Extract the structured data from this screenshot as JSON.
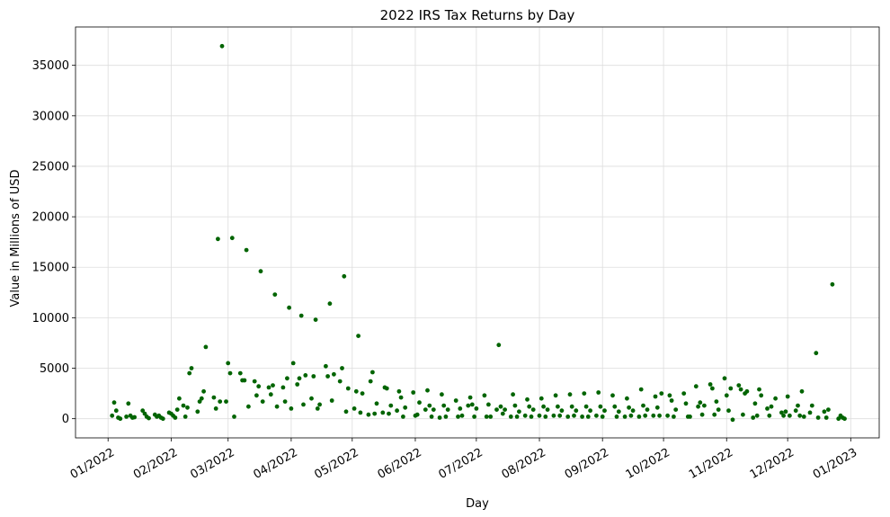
{
  "chart_data": {
    "type": "scatter",
    "title": "2022 IRS Tax Returns by Day",
    "xlabel": "Day",
    "ylabel": "Value in Millions of USD",
    "xlim": [
      "2021-12-16",
      "2023-01-15"
    ],
    "ylim": [
      -1900,
      38800
    ],
    "grid": true,
    "marker_color": "#006400",
    "x_ticks": [
      {
        "date": "2022-01-01",
        "label": "01/2022"
      },
      {
        "date": "2022-02-01",
        "label": "02/2022"
      },
      {
        "date": "2022-03-01",
        "label": "03/2022"
      },
      {
        "date": "2022-04-01",
        "label": "04/2022"
      },
      {
        "date": "2022-05-01",
        "label": "05/2022"
      },
      {
        "date": "2022-06-01",
        "label": "06/2022"
      },
      {
        "date": "2022-07-01",
        "label": "07/2022"
      },
      {
        "date": "2022-08-01",
        "label": "08/2022"
      },
      {
        "date": "2022-09-01",
        "label": "09/2022"
      },
      {
        "date": "2022-10-01",
        "label": "10/2022"
      },
      {
        "date": "2022-11-01",
        "label": "11/2022"
      },
      {
        "date": "2022-12-01",
        "label": "12/2022"
      },
      {
        "date": "2023-01-01",
        "label": "01/2023"
      }
    ],
    "y_ticks": [
      {
        "value": 0,
        "label": "0"
      },
      {
        "value": 5000,
        "label": "5000"
      },
      {
        "value": 10000,
        "label": "10000"
      },
      {
        "value": 15000,
        "label": "15000"
      },
      {
        "value": 20000,
        "label": "20000"
      },
      {
        "value": 25000,
        "label": "25000"
      },
      {
        "value": 30000,
        "label": "30000"
      },
      {
        "value": 35000,
        "label": "35000"
      }
    ],
    "points": [
      [
        "2022-01-03",
        300
      ],
      [
        "2022-01-04",
        1600
      ],
      [
        "2022-01-05",
        800
      ],
      [
        "2022-01-06",
        100
      ],
      [
        "2022-01-07",
        0
      ],
      [
        "2022-01-10",
        200
      ],
      [
        "2022-01-11",
        1500
      ],
      [
        "2022-01-12",
        300
      ],
      [
        "2022-01-13",
        100
      ],
      [
        "2022-01-14",
        150
      ],
      [
        "2022-01-18",
        800
      ],
      [
        "2022-01-19",
        500
      ],
      [
        "2022-01-20",
        200
      ],
      [
        "2022-01-21",
        50
      ],
      [
        "2022-01-24",
        400
      ],
      [
        "2022-01-25",
        200
      ],
      [
        "2022-01-26",
        300
      ],
      [
        "2022-01-27",
        100
      ],
      [
        "2022-01-28",
        0
      ],
      [
        "2022-01-31",
        600
      ],
      [
        "2022-02-01",
        500
      ],
      [
        "2022-02-02",
        300
      ],
      [
        "2022-02-03",
        100
      ],
      [
        "2022-02-04",
        900
      ],
      [
        "2022-02-05",
        2000
      ],
      [
        "2022-02-07",
        1300
      ],
      [
        "2022-02-08",
        200
      ],
      [
        "2022-02-09",
        1100
      ],
      [
        "2022-02-10",
        4500
      ],
      [
        "2022-02-11",
        5000
      ],
      [
        "2022-02-14",
        700
      ],
      [
        "2022-02-15",
        1700
      ],
      [
        "2022-02-16",
        2000
      ],
      [
        "2022-02-17",
        2700
      ],
      [
        "2022-02-18",
        7100
      ],
      [
        "2022-02-22",
        2100
      ],
      [
        "2022-02-23",
        1000
      ],
      [
        "2022-02-24",
        17800
      ],
      [
        "2022-02-25",
        1700
      ],
      [
        "2022-02-26",
        36900
      ],
      [
        "2022-02-28",
        1700
      ],
      [
        "2022-03-01",
        5500
      ],
      [
        "2022-03-02",
        4500
      ],
      [
        "2022-03-03",
        17900
      ],
      [
        "2022-03-04",
        200
      ],
      [
        "2022-03-07",
        4500
      ],
      [
        "2022-03-08",
        3800
      ],
      [
        "2022-03-09",
        3800
      ],
      [
        "2022-03-10",
        16700
      ],
      [
        "2022-03-11",
        1200
      ],
      [
        "2022-03-14",
        3700
      ],
      [
        "2022-03-15",
        2300
      ],
      [
        "2022-03-16",
        3200
      ],
      [
        "2022-03-17",
        14600
      ],
      [
        "2022-03-18",
        1700
      ],
      [
        "2022-03-21",
        3100
      ],
      [
        "2022-03-22",
        2400
      ],
      [
        "2022-03-23",
        3300
      ],
      [
        "2022-03-24",
        12300
      ],
      [
        "2022-03-25",
        1200
      ],
      [
        "2022-03-28",
        3100
      ],
      [
        "2022-03-29",
        1700
      ],
      [
        "2022-03-30",
        4000
      ],
      [
        "2022-03-31",
        11000
      ],
      [
        "2022-04-01",
        1000
      ],
      [
        "2022-04-02",
        5500
      ],
      [
        "2022-04-04",
        3400
      ],
      [
        "2022-04-05",
        4000
      ],
      [
        "2022-04-06",
        10200
      ],
      [
        "2022-04-07",
        1400
      ],
      [
        "2022-04-08",
        4300
      ],
      [
        "2022-04-11",
        2000
      ],
      [
        "2022-04-12",
        4200
      ],
      [
        "2022-04-13",
        9800
      ],
      [
        "2022-04-14",
        1000
      ],
      [
        "2022-04-15",
        1400
      ],
      [
        "2022-04-18",
        5200
      ],
      [
        "2022-04-19",
        4200
      ],
      [
        "2022-04-20",
        11400
      ],
      [
        "2022-04-21",
        1800
      ],
      [
        "2022-04-22",
        4400
      ],
      [
        "2022-04-25",
        3700
      ],
      [
        "2022-04-26",
        5000
      ],
      [
        "2022-04-27",
        14100
      ],
      [
        "2022-04-28",
        700
      ],
      [
        "2022-04-29",
        3000
      ],
      [
        "2022-05-02",
        1000
      ],
      [
        "2022-05-03",
        2700
      ],
      [
        "2022-05-04",
        8200
      ],
      [
        "2022-05-05",
        600
      ],
      [
        "2022-05-06",
        2500
      ],
      [
        "2022-05-09",
        400
      ],
      [
        "2022-05-10",
        3700
      ],
      [
        "2022-05-11",
        4600
      ],
      [
        "2022-05-12",
        500
      ],
      [
        "2022-05-13",
        1500
      ],
      [
        "2022-05-16",
        600
      ],
      [
        "2022-05-17",
        3100
      ],
      [
        "2022-05-18",
        3000
      ],
      [
        "2022-05-19",
        500
      ],
      [
        "2022-05-20",
        1300
      ],
      [
        "2022-05-23",
        800
      ],
      [
        "2022-05-24",
        2700
      ],
      [
        "2022-05-25",
        2100
      ],
      [
        "2022-05-26",
        200
      ],
      [
        "2022-05-27",
        1100
      ],
      [
        "2022-05-31",
        2600
      ],
      [
        "2022-06-01",
        300
      ],
      [
        "2022-06-02",
        400
      ],
      [
        "2022-06-03",
        1600
      ],
      [
        "2022-06-06",
        900
      ],
      [
        "2022-06-07",
        2800
      ],
      [
        "2022-06-08",
        1300
      ],
      [
        "2022-06-09",
        200
      ],
      [
        "2022-06-10",
        900
      ],
      [
        "2022-06-13",
        100
      ],
      [
        "2022-06-14",
        2400
      ],
      [
        "2022-06-15",
        1300
      ],
      [
        "2022-06-16",
        200
      ],
      [
        "2022-06-17",
        900
      ],
      [
        "2022-06-21",
        1800
      ],
      [
        "2022-06-22",
        200
      ],
      [
        "2022-06-23",
        1000
      ],
      [
        "2022-06-24",
        300
      ],
      [
        "2022-06-27",
        1300
      ],
      [
        "2022-06-28",
        2100
      ],
      [
        "2022-06-29",
        1400
      ],
      [
        "2022-06-30",
        200
      ],
      [
        "2022-07-01",
        1000
      ],
      [
        "2022-07-05",
        2300
      ],
      [
        "2022-07-06",
        200
      ],
      [
        "2022-07-07",
        1400
      ],
      [
        "2022-07-08",
        200
      ],
      [
        "2022-07-11",
        900
      ],
      [
        "2022-07-12",
        7300
      ],
      [
        "2022-07-13",
        1200
      ],
      [
        "2022-07-14",
        500
      ],
      [
        "2022-07-15",
        900
      ],
      [
        "2022-07-18",
        200
      ],
      [
        "2022-07-19",
        2400
      ],
      [
        "2022-07-20",
        1300
      ],
      [
        "2022-07-21",
        200
      ],
      [
        "2022-07-22",
        700
      ],
      [
        "2022-07-25",
        300
      ],
      [
        "2022-07-26",
        1900
      ],
      [
        "2022-07-27",
        1200
      ],
      [
        "2022-07-28",
        200
      ],
      [
        "2022-07-29",
        900
      ],
      [
        "2022-08-01",
        300
      ],
      [
        "2022-08-02",
        2000
      ],
      [
        "2022-08-03",
        1200
      ],
      [
        "2022-08-04",
        200
      ],
      [
        "2022-08-05",
        900
      ],
      [
        "2022-08-08",
        300
      ],
      [
        "2022-08-09",
        2300
      ],
      [
        "2022-08-10",
        1200
      ],
      [
        "2022-08-11",
        300
      ],
      [
        "2022-08-12",
        800
      ],
      [
        "2022-08-15",
        200
      ],
      [
        "2022-08-16",
        2400
      ],
      [
        "2022-08-17",
        1200
      ],
      [
        "2022-08-18",
        300
      ],
      [
        "2022-08-19",
        800
      ],
      [
        "2022-08-22",
        200
      ],
      [
        "2022-08-23",
        2500
      ],
      [
        "2022-08-24",
        1200
      ],
      [
        "2022-08-25",
        200
      ],
      [
        "2022-08-26",
        800
      ],
      [
        "2022-08-29",
        300
      ],
      [
        "2022-08-30",
        2600
      ],
      [
        "2022-08-31",
        1200
      ],
      [
        "2022-09-01",
        200
      ],
      [
        "2022-09-02",
        800
      ],
      [
        "2022-09-06",
        2300
      ],
      [
        "2022-09-07",
        1200
      ],
      [
        "2022-09-08",
        200
      ],
      [
        "2022-09-09",
        700
      ],
      [
        "2022-09-12",
        200
      ],
      [
        "2022-09-13",
        2000
      ],
      [
        "2022-09-14",
        1100
      ],
      [
        "2022-09-15",
        300
      ],
      [
        "2022-09-16",
        800
      ],
      [
        "2022-09-19",
        200
      ],
      [
        "2022-09-20",
        2900
      ],
      [
        "2022-09-21",
        1300
      ],
      [
        "2022-09-22",
        300
      ],
      [
        "2022-09-23",
        900
      ],
      [
        "2022-09-26",
        300
      ],
      [
        "2022-09-27",
        2200
      ],
      [
        "2022-09-28",
        1100
      ],
      [
        "2022-09-29",
        300
      ],
      [
        "2022-09-30",
        2500
      ],
      [
        "2022-10-03",
        300
      ],
      [
        "2022-10-04",
        2300
      ],
      [
        "2022-10-05",
        1800
      ],
      [
        "2022-10-06",
        200
      ],
      [
        "2022-10-07",
        900
      ],
      [
        "2022-10-11",
        2500
      ],
      [
        "2022-10-12",
        1500
      ],
      [
        "2022-10-13",
        200
      ],
      [
        "2022-10-14",
        200
      ],
      [
        "2022-10-17",
        3200
      ],
      [
        "2022-10-18",
        1200
      ],
      [
        "2022-10-19",
        1600
      ],
      [
        "2022-10-20",
        400
      ],
      [
        "2022-10-21",
        1300
      ],
      [
        "2022-10-24",
        3400
      ],
      [
        "2022-10-25",
        3000
      ],
      [
        "2022-10-26",
        400
      ],
      [
        "2022-10-27",
        1700
      ],
      [
        "2022-10-28",
        900
      ],
      [
        "2022-10-31",
        4000
      ],
      [
        "2022-11-01",
        2300
      ],
      [
        "2022-11-02",
        800
      ],
      [
        "2022-11-03",
        3000
      ],
      [
        "2022-11-04",
        -100
      ],
      [
        "2022-11-07",
        3300
      ],
      [
        "2022-11-08",
        2900
      ],
      [
        "2022-11-09",
        400
      ],
      [
        "2022-11-10",
        2500
      ],
      [
        "2022-11-11",
        2700
      ],
      [
        "2022-11-14",
        100
      ],
      [
        "2022-11-15",
        1500
      ],
      [
        "2022-11-16",
        300
      ],
      [
        "2022-11-17",
        2900
      ],
      [
        "2022-11-18",
        2300
      ],
      [
        "2022-11-21",
        1000
      ],
      [
        "2022-11-22",
        300
      ],
      [
        "2022-11-23",
        1200
      ],
      [
        "2022-11-25",
        2000
      ],
      [
        "2022-11-28",
        600
      ],
      [
        "2022-11-29",
        300
      ],
      [
        "2022-11-30",
        700
      ],
      [
        "2022-12-01",
        2200
      ],
      [
        "2022-12-02",
        300
      ],
      [
        "2022-12-05",
        800
      ],
      [
        "2022-12-06",
        1300
      ],
      [
        "2022-12-07",
        300
      ],
      [
        "2022-12-08",
        2700
      ],
      [
        "2022-12-09",
        200
      ],
      [
        "2022-12-12",
        600
      ],
      [
        "2022-12-13",
        1300
      ],
      [
        "2022-12-15",
        6500
      ],
      [
        "2022-12-16",
        100
      ],
      [
        "2022-12-19",
        700
      ],
      [
        "2022-12-20",
        100
      ],
      [
        "2022-12-21",
        900
      ],
      [
        "2022-12-23",
        13300
      ],
      [
        "2022-12-26",
        0
      ],
      [
        "2022-12-27",
        300
      ],
      [
        "2022-12-28",
        100
      ],
      [
        "2022-12-29",
        0
      ]
    ]
  }
}
